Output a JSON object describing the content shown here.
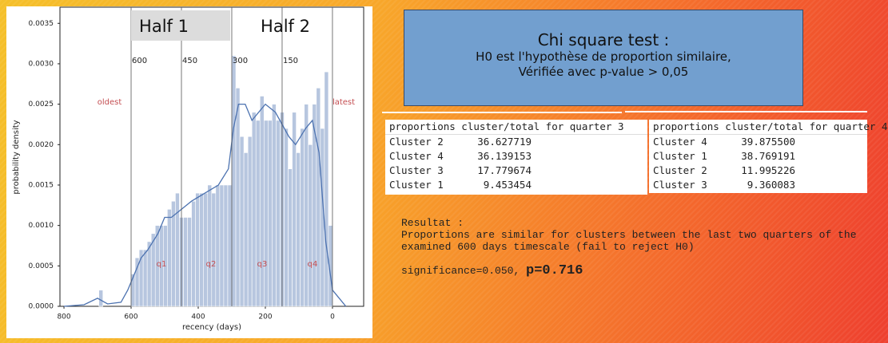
{
  "chart_data": {
    "type": "histogram",
    "x_label": "recency (days)",
    "y_label": "probability density",
    "bins": [
      720,
      708,
      696,
      684,
      672,
      660,
      648,
      636,
      624,
      612,
      600,
      588,
      576,
      564,
      552,
      540,
      528,
      516,
      504,
      492,
      480,
      468,
      456,
      444,
      432,
      420,
      408,
      396,
      384,
      372,
      360,
      348,
      336,
      324,
      312,
      300,
      288,
      276,
      264,
      252,
      240,
      228,
      216,
      204,
      192,
      180,
      168,
      156,
      144,
      132,
      120,
      108,
      96,
      84,
      72,
      60,
      48,
      36,
      24,
      12,
      0
    ],
    "values": [
      0,
      0,
      0.0002,
      0,
      0,
      0,
      0,
      0,
      0,
      0,
      0.0004,
      0.0006,
      0.0007,
      0.0007,
      0.0008,
      0.0009,
      0.001,
      0.001,
      0.001,
      0.0012,
      0.0013,
      0.0014,
      0.0011,
      0.0011,
      0.0011,
      0.0013,
      0.0014,
      0.0014,
      0.0014,
      0.0015,
      0.0014,
      0.0015,
      0.0015,
      0.0015,
      0.0015,
      0.0031,
      0.0027,
      0.0021,
      0.0019,
      0.0021,
      0.0024,
      0.0023,
      0.0026,
      0.0023,
      0.0023,
      0.0025,
      0.0023,
      0.0024,
      0.0022,
      0.0017,
      0.0024,
      0.0019,
      0.0022,
      0.0025,
      0.002,
      0.0025,
      0.0027,
      0.0022,
      0.0029,
      0.001
    ],
    "color": "#b7c6df",
    "kde": {
      "x": [
        800,
        740,
        700,
        670,
        630,
        610,
        590,
        570,
        550,
        520,
        500,
        480,
        450,
        420,
        380,
        340,
        310,
        295,
        280,
        260,
        240,
        200,
        170,
        130,
        110,
        80,
        60,
        40,
        20,
        0,
        -40
      ],
      "values": [
        0,
        2e-05,
        0.0001,
        3e-05,
        5e-05,
        0.0002,
        0.0004,
        0.0006,
        0.0007,
        0.0009,
        0.0011,
        0.0011,
        0.0012,
        0.0013,
        0.0014,
        0.0015,
        0.0017,
        0.0022,
        0.0025,
        0.0025,
        0.0023,
        0.0025,
        0.0024,
        0.0021,
        0.002,
        0.0022,
        0.0023,
        0.0019,
        0.0008,
        0.0002,
        0
      ],
      "color": "#4c72b0"
    },
    "xlim": [
      812,
      -93
    ],
    "ylim": [
      0,
      0.0037
    ],
    "xticks": [
      800,
      600,
      400,
      200,
      0
    ],
    "yticks": [
      {
        "value": 0,
        "label": "0.0000"
      },
      {
        "value": 0.0005,
        "label": "0.0005"
      },
      {
        "value": 0.001,
        "label": "0.0010"
      },
      {
        "value": 0.0015,
        "label": "0.0015"
      },
      {
        "value": 0.002,
        "label": "0.0020"
      },
      {
        "value": 0.0025,
        "label": "0.0025"
      },
      {
        "value": 0.003,
        "label": "0.0030"
      },
      {
        "value": 0.0035,
        "label": "0.0035"
      }
    ],
    "vlines": [
      600,
      450,
      300,
      150,
      0
    ],
    "halves": [
      "Half 1",
      "Half 2"
    ],
    "annotations": [
      "oldest",
      "latest",
      "q1",
      "q2",
      "q3",
      "q4"
    ]
  },
  "chi_box": {
    "title": "Chi square test :",
    "lines": [
      "H0 est l'hypothèse de proportion similaire,",
      "Vérifiée avec p-value > 0,05"
    ]
  },
  "tables": [
    {
      "header": "proportions cluster/total for quarter 3",
      "rows": [
        [
          "Cluster 2",
          "36.627719"
        ],
        [
          "Cluster 4",
          "36.139153"
        ],
        [
          "Cluster 3",
          "17.779674"
        ],
        [
          "Cluster 1",
          "9.453454"
        ]
      ]
    },
    {
      "header": "proportions cluster/total for quarter 4",
      "rows": [
        [
          "Cluster 4",
          "39.875500"
        ],
        [
          "Cluster 1",
          "38.769191"
        ],
        [
          "Cluster 2",
          "11.995226"
        ],
        [
          "Cluster 3",
          "9.360083"
        ]
      ]
    }
  ],
  "result": {
    "heading": "Resultat :",
    "lines": [
      "Proportions are similar for clusters between the last two quarters of the",
      "examined 600 days timescale (fail to reject H0)"
    ],
    "significance": "significance=0.050, ",
    "p_value": "p=0.716"
  }
}
